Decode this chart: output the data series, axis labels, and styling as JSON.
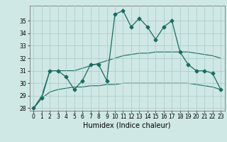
{
  "xlabel": "Humidex (Indice chaleur)",
  "background_color": "#cfe8e5",
  "grid_color": "#aacfcc",
  "line_color": "#1a6b60",
  "x": [
    0,
    1,
    2,
    3,
    4,
    5,
    6,
    7,
    8,
    9,
    10,
    11,
    12,
    13,
    14,
    15,
    16,
    17,
    18,
    19,
    20,
    21,
    22,
    23
  ],
  "y_main": [
    28,
    28.8,
    31,
    31,
    30.5,
    29.5,
    30.2,
    31.5,
    31.5,
    30.2,
    35.5,
    35.8,
    34.5,
    35.2,
    34.5,
    33.5,
    34.5,
    35.0,
    32.5,
    31.5,
    31.0,
    31.0,
    30.8,
    29.5
  ],
  "y_upper": [
    28.0,
    29.0,
    31.0,
    31.0,
    31.0,
    31.0,
    31.2,
    31.4,
    31.6,
    31.8,
    32.0,
    32.2,
    32.3,
    32.4,
    32.4,
    32.5,
    32.5,
    32.5,
    32.5,
    32.5,
    32.4,
    32.3,
    32.2,
    32.0
  ],
  "y_lower": [
    28.0,
    28.8,
    29.3,
    29.5,
    29.6,
    29.7,
    29.7,
    29.8,
    29.8,
    29.9,
    29.9,
    30.0,
    30.0,
    30.0,
    30.0,
    30.0,
    30.0,
    30.0,
    30.0,
    30.0,
    29.9,
    29.8,
    29.7,
    29.5
  ],
  "ylim": [
    27.8,
    36.2
  ],
  "xlim": [
    -0.5,
    23.5
  ],
  "yticks": [
    28,
    29,
    30,
    31,
    32,
    33,
    34,
    35
  ],
  "xticks": [
    0,
    1,
    2,
    3,
    4,
    5,
    6,
    7,
    8,
    9,
    10,
    11,
    12,
    13,
    14,
    15,
    16,
    17,
    18,
    19,
    20,
    21,
    22,
    23
  ],
  "marker": "D",
  "markersize": 2.5,
  "xlabel_fontsize": 7,
  "tick_fontsize": 5.5
}
